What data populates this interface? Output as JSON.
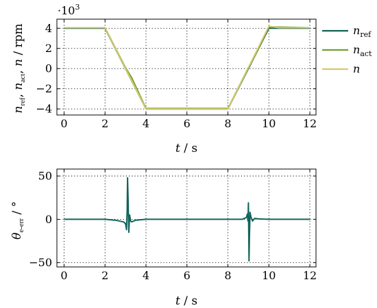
{
  "chart_data": [
    {
      "type": "line",
      "title": "",
      "xlabel": {
        "var": "t",
        "sep": " / ",
        "unit": "s"
      },
      "ylabel": {
        "parts": [
          "n",
          "ref",
          ", ",
          "n",
          "act",
          ", ",
          "n",
          "",
          " / rpm"
        ],
        "text": "n_ref, n_act, n / rpm"
      },
      "xlim": [
        -0.35,
        12.3
      ],
      "ylim": [
        -4.6,
        4.9
      ],
      "y_multiplier": "·10",
      "y_multiplier_exp": "3",
      "x_ticks": [
        0,
        2,
        4,
        6,
        8,
        10,
        12
      ],
      "y_ticks": [
        -4,
        -2,
        0,
        2,
        4
      ],
      "grid": true,
      "grid_style": "dotted",
      "legend_position": "right",
      "series": [
        {
          "name": "n",
          "sub": "ref",
          "color": "#0f5f52",
          "x": [
            0,
            2,
            4,
            8,
            10,
            12
          ],
          "y": [
            4.0,
            4.0,
            -4.0,
            -4.0,
            4.0,
            4.0
          ]
        },
        {
          "name": "n",
          "sub": "act",
          "color": "#6fa12c",
          "x": [
            0,
            2,
            3.0,
            3.3,
            4.0,
            8.0,
            9.0,
            9.3,
            10.0,
            12.0
          ],
          "y": [
            4.05,
            4.05,
            0.1,
            -0.9,
            -3.95,
            -3.95,
            0.1,
            1.2,
            4.15,
            4.05
          ]
        },
        {
          "name": "n",
          "sub": "",
          "color": "#d6c86a",
          "x": [
            0,
            2,
            4,
            8,
            10,
            10.5,
            12
          ],
          "y": [
            4.05,
            4.05,
            -4.0,
            -4.0,
            4.2,
            4.05,
            4.05
          ]
        }
      ]
    },
    {
      "type": "line",
      "title": "",
      "xlabel": {
        "var": "t",
        "sep": " / ",
        "unit": "s"
      },
      "ylabel": {
        "parts": [
          "θ",
          "e-err",
          " / °"
        ],
        "text": "θ_e-err / °"
      },
      "xlim": [
        -0.35,
        12.3
      ],
      "ylim": [
        -55,
        58
      ],
      "x_ticks": [
        0,
        2,
        4,
        6,
        8,
        10,
        12
      ],
      "y_ticks": [
        -50,
        0,
        50
      ],
      "grid": true,
      "grid_style": "dotted",
      "series": [
        {
          "name": "",
          "color": "#10645a",
          "x": [
            0,
            1.0,
            2.0,
            2.5,
            2.9,
            3.0,
            3.05,
            3.08,
            3.1,
            3.13,
            3.16,
            3.2,
            3.25,
            3.3,
            3.5,
            4.0,
            5.0,
            6.0,
            7.0,
            7.5,
            8.0,
            8.4,
            8.7,
            8.8,
            8.9,
            8.95,
            8.98,
            9.0,
            9.03,
            9.05,
            9.08,
            9.12,
            9.2,
            9.3,
            9.5,
            10.0,
            11.0,
            12.0
          ],
          "y": [
            0,
            0,
            0,
            -1,
            -3,
            -5,
            -12,
            10,
            48,
            20,
            -15,
            5,
            -2,
            -3,
            -1,
            0,
            0,
            0,
            0,
            0,
            0,
            0,
            0,
            1,
            2,
            6,
            -2,
            19,
            -48,
            -20,
            8,
            3,
            -2,
            1,
            0.5,
            0,
            0,
            0
          ]
        }
      ]
    }
  ]
}
